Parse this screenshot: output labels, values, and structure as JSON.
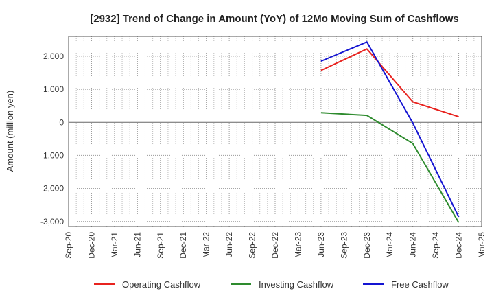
{
  "chart_data": {
    "type": "line",
    "title": "[2932]  Trend of Change in Amount (YoY) of 12Mo Moving Sum of Cashflows",
    "ylabel": "Amount (million yen)",
    "xlabel": "",
    "categories": [
      "Sep-20",
      "Dec-20",
      "Mar-21",
      "Jun-21",
      "Sep-21",
      "Dec-21",
      "Mar-22",
      "Jun-22",
      "Sep-22",
      "Dec-22",
      "Mar-23",
      "Jun-23",
      "Sep-23",
      "Dec-23",
      "Mar-24",
      "Jun-24",
      "Sep-24",
      "Dec-24",
      "Mar-25"
    ],
    "ylim": [
      -3150,
      2600
    ],
    "yticks": [
      2000,
      1000,
      0,
      -1000,
      -2000,
      -3000
    ],
    "ytick_labels": [
      "2,000",
      "1,000",
      "0",
      "-1,000",
      "-2,000",
      "-3,000"
    ],
    "grid": true,
    "legend_position": "bottom",
    "series": [
      {
        "name": "Operating Cashflow",
        "color": "#e8231f",
        "points": [
          [
            11,
            1570
          ],
          [
            13,
            2220
          ],
          [
            15,
            620
          ],
          [
            17,
            170
          ]
        ]
      },
      {
        "name": "Investing Cashflow",
        "color": "#2e8b2e",
        "points": [
          [
            11,
            290
          ],
          [
            13,
            210
          ],
          [
            15,
            -640
          ],
          [
            17,
            -3030
          ]
        ]
      },
      {
        "name": "Free Cashflow",
        "color": "#1414d2",
        "points": [
          [
            11,
            1850
          ],
          [
            13,
            2430
          ],
          [
            15,
            -20
          ],
          [
            17,
            -2860
          ]
        ]
      }
    ]
  }
}
